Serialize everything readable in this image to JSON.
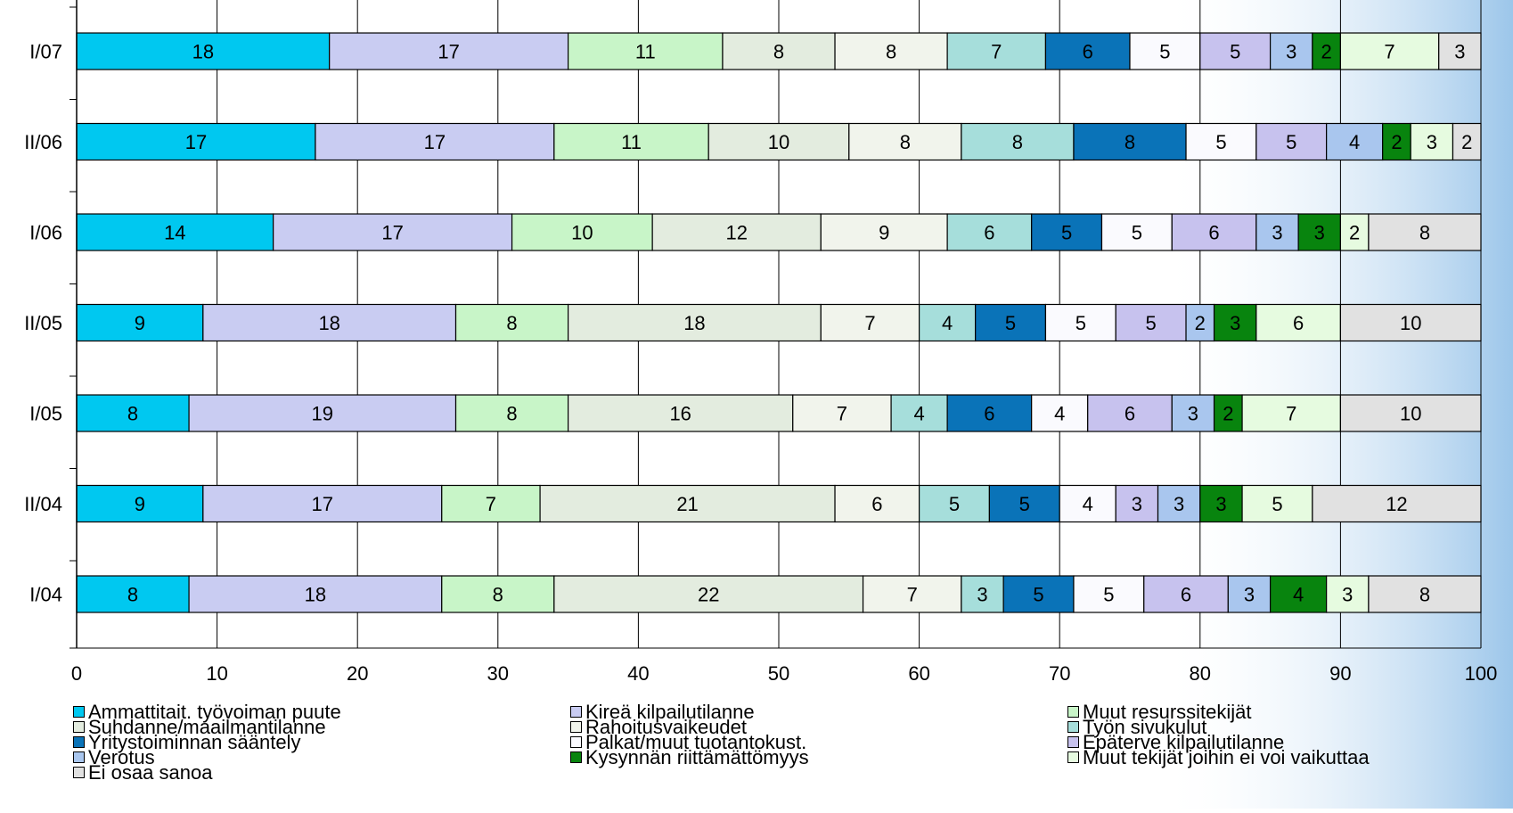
{
  "chart_data": {
    "type": "bar",
    "orientation": "horizontal",
    "stacked": true,
    "title": "",
    "xlabel": "",
    "ylabel": "",
    "xlim": [
      0,
      100
    ],
    "xticks": [
      "0",
      "10",
      "20",
      "30",
      "40",
      "50",
      "60",
      "70",
      "80",
      "90",
      "100"
    ],
    "grid": "vertical",
    "legend_position": "bottom",
    "categories": [
      "I/07",
      "II/06",
      "I/06",
      "II/05",
      "I/05",
      "II/04",
      "I/04"
    ],
    "series": [
      {
        "name": "Ammattitait. työvoiman puute",
        "color": "#00c8f0",
        "values": [
          18,
          17,
          14,
          9,
          8,
          9,
          8
        ]
      },
      {
        "name": "Kireä kilpailutilanne",
        "color": "#c9ccf2",
        "values": [
          17,
          17,
          17,
          18,
          19,
          17,
          18
        ]
      },
      {
        "name": "Muut resurssitekijät",
        "color": "#c8f5c8",
        "values": [
          11,
          11,
          10,
          8,
          8,
          7,
          8
        ]
      },
      {
        "name": "Suhdanne/maailmantilanne",
        "color": "#e3ecdf",
        "values": [
          8,
          10,
          12,
          18,
          16,
          21,
          22
        ]
      },
      {
        "name": "Rahoitusvaikeudet",
        "color": "#f1f4ec",
        "values": [
          8,
          8,
          9,
          7,
          7,
          6,
          7
        ]
      },
      {
        "name": "Työn sivukulut",
        "color": "#a6dedb",
        "values": [
          7,
          8,
          6,
          4,
          4,
          5,
          3
        ]
      },
      {
        "name": "Yritystoiminnan sääntely",
        "color": "#0a73b8",
        "values": [
          6,
          8,
          5,
          5,
          6,
          5,
          5
        ]
      },
      {
        "name": "Palkat/muut tuotantokust.",
        "color": "#fafafe",
        "values": [
          5,
          5,
          5,
          5,
          4,
          4,
          5
        ]
      },
      {
        "name": "Epäterve kilpailutilanne",
        "color": "#c7c2ee",
        "values": [
          5,
          5,
          6,
          5,
          6,
          3,
          6
        ]
      },
      {
        "name": "Verotus",
        "color": "#a9c6ee",
        "values": [
          3,
          4,
          3,
          2,
          3,
          3,
          3
        ]
      },
      {
        "name": "Kysynnän riittämättömyys",
        "color": "#08840e",
        "values": [
          2,
          2,
          3,
          3,
          2,
          3,
          4
        ]
      },
      {
        "name": "Muut tekijät joihin ei voi vaikuttaa",
        "color": "#e6fbe0",
        "values": [
          7,
          3,
          2,
          6,
          7,
          5,
          3
        ]
      },
      {
        "name": "Ei osaa sanoa",
        "color": "#e1e1e1",
        "values": [
          3,
          2,
          8,
          10,
          10,
          12,
          8
        ]
      }
    ]
  }
}
